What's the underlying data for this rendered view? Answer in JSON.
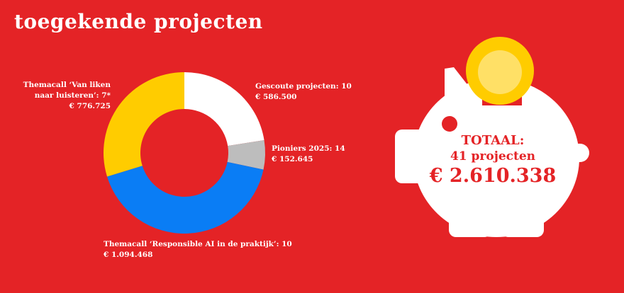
{
  "title": "toegekende projecten",
  "chart_data": {
    "type": "pie",
    "categories": [
      "Gescoute projecten: 10",
      "Pioniers 2025: 14",
      "Themacall ‘Responsible AI in de praktijk’: 10",
      "Themacall ‘Van liken naar luisteren’:   7*"
    ],
    "values": [
      586500,
      152645,
      1094468,
      776725
    ],
    "value_labels": [
      "€ 586.500",
      "€ 152.645",
      "€ 1.094.468",
      "€ 776.725"
    ],
    "colors": [
      "#ffffff",
      "#bdbdbd",
      "#0a7df5",
      "#ffcc00"
    ]
  },
  "labels": [
    {
      "name": "Gescoute projecten: 10",
      "value": "€ 586.500"
    },
    {
      "name": "Pioniers 2025: 14",
      "value": "€ 152.645"
    },
    {
      "name": "Themacall ‘Responsible AI in de praktijk’: 10",
      "value": "€ 1.094.468"
    },
    {
      "name_line1": "Themacall ‘Van liken",
      "name_line2": "naar luisteren’:   7*",
      "value": "€ 776.725"
    }
  ],
  "total": {
    "label": "TOTAAL:",
    "projects": "41 projecten",
    "amount": "€ 2.610.338"
  },
  "colors": {
    "background": "#e42326",
    "coin_outer": "#ffcc00",
    "coin_inner": "#ffe066",
    "pig": "#ffffff"
  }
}
